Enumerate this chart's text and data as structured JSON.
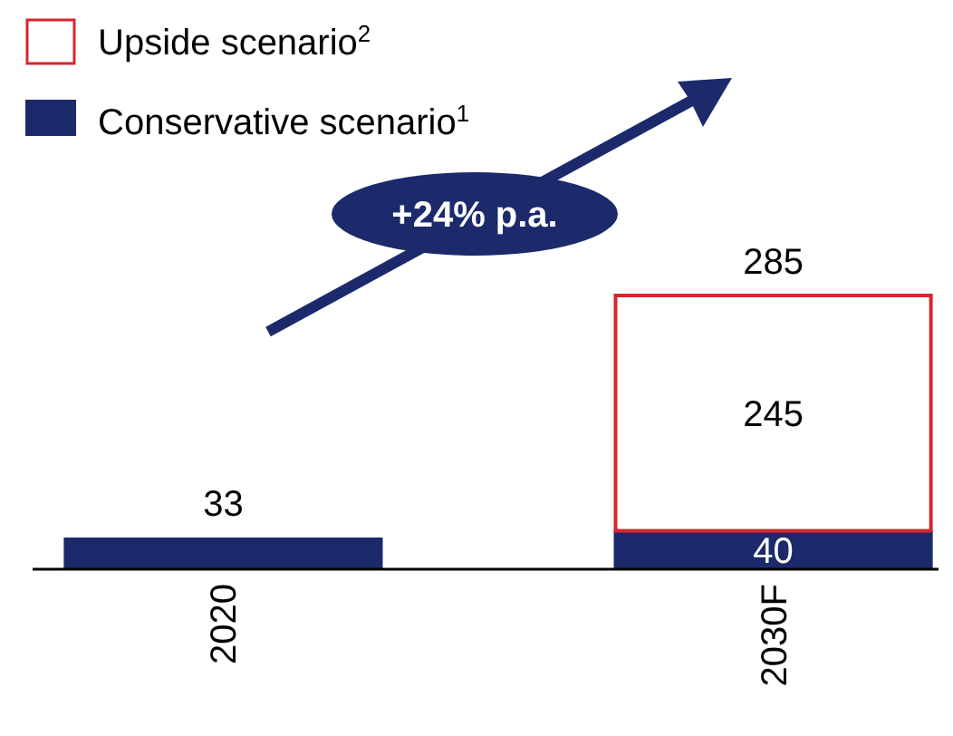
{
  "chart_data": {
    "type": "bar",
    "stacked": true,
    "categories": [
      "2020",
      "2030F"
    ],
    "series": [
      {
        "name": "Conservative scenario$^{1}$",
        "color": "#1c2a6c",
        "values": [
          33,
          40
        ],
        "value_labels": [
          "33",
          "40"
        ]
      },
      {
        "name": "Upside scenario$^{2}$",
        "color": "#d7262e",
        "values": [
          null,
          245
        ],
        "value_labels": [
          null,
          "245"
        ]
      }
    ],
    "totals": [
      null,
      "285"
    ],
    "annotations": [
      "+24% p.a."
    ],
    "legend": "top left"
  }
}
